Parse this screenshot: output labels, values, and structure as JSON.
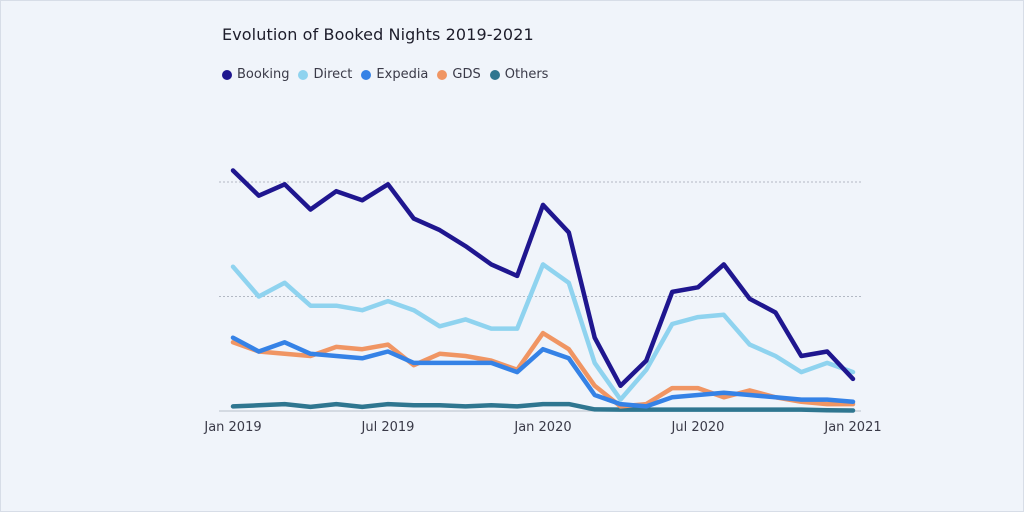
{
  "chart_data": {
    "type": "line",
    "title": "Evolution of Booked Nights 2019-2021",
    "xlabel": "",
    "ylabel": "",
    "ylim": [
      0,
      100
    ],
    "grid": "horizontal dotted",
    "legend_position": "top-left",
    "x": [
      "Jan 2019",
      "Feb 2019",
      "Mar 2019",
      "Apr 2019",
      "May 2019",
      "Jun 2019",
      "Jul 2019",
      "Aug 2019",
      "Sep 2019",
      "Oct 2019",
      "Nov 2019",
      "Dec 2019",
      "Jan 2020",
      "Feb 2020",
      "Mar 2020",
      "Apr 2020",
      "May 2020",
      "Jun 2020",
      "Jul 2020",
      "Aug 2020",
      "Sep 2020",
      "Oct 2020",
      "Nov 2020",
      "Dec 2020",
      "Jan 2021"
    ],
    "xtick_labels": [
      {
        "index": 0,
        "label": "Jan 2019"
      },
      {
        "index": 6,
        "label": "Jul 2019"
      },
      {
        "index": 12,
        "label": "Jan 2020"
      },
      {
        "index": 18,
        "label": "Jul 2020"
      },
      {
        "index": 24,
        "label": "Jan 2021"
      }
    ],
    "gridlines": [
      0,
      50,
      100
    ],
    "series": [
      {
        "name": "Booking",
        "color": "#1f168f",
        "values": [
          105,
          94,
          99,
          88,
          96,
          92,
          99,
          84,
          79,
          72,
          64,
          59,
          90,
          78,
          32,
          11,
          22,
          52,
          54,
          64,
          49,
          43,
          24,
          26,
          14
        ]
      },
      {
        "name": "Direct",
        "color": "#8fd3ef",
        "values": [
          63,
          50,
          56,
          46,
          46,
          44,
          48,
          44,
          37,
          40,
          36,
          36,
          64,
          56,
          21,
          5,
          18,
          38,
          41,
          42,
          29,
          24,
          17,
          21,
          17
        ]
      },
      {
        "name": "Expedia",
        "color": "#3582e6",
        "values": [
          32,
          26,
          30,
          25,
          24,
          23,
          26,
          21,
          21,
          21,
          21,
          17,
          27,
          23,
          7,
          3,
          2,
          6,
          7,
          8,
          7,
          6,
          5,
          5,
          4
        ]
      },
      {
        "name": "GDS",
        "color": "#f09563",
        "values": [
          30,
          26,
          25,
          24,
          28,
          27,
          29,
          20,
          25,
          24,
          22,
          18,
          34,
          27,
          11,
          2,
          3,
          10,
          10,
          6,
          9,
          6,
          4,
          3,
          3
        ]
      },
      {
        "name": "Others",
        "color": "#2f7690",
        "values": [
          2,
          2.5,
          3,
          1.8,
          3,
          1.8,
          3,
          2.5,
          2.5,
          2,
          2.5,
          2,
          3,
          3,
          0.7,
          0.6,
          0.6,
          0.6,
          0.6,
          0.6,
          0.6,
          0.6,
          0.6,
          0.3,
          0.2
        ]
      }
    ]
  }
}
